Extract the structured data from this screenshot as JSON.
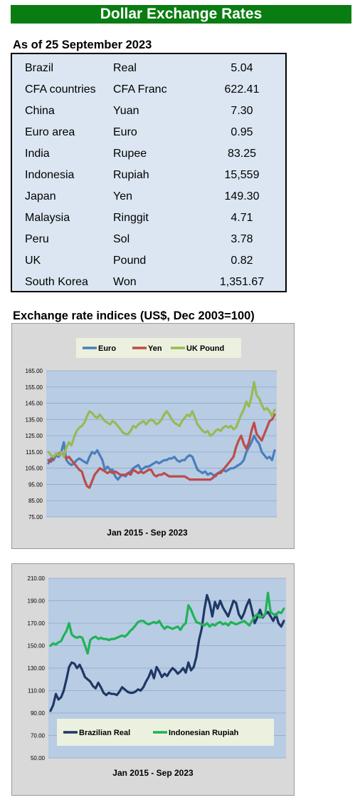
{
  "banner": "Dollar Exchange Rates",
  "rates_heading": "As of 25 September 2023",
  "rates": [
    {
      "country": "Brazil",
      "currency": "Real",
      "value": "5.04"
    },
    {
      "country": "CFA countries",
      "currency": "CFA Franc",
      "value": "622.41"
    },
    {
      "country": "China",
      "currency": "Yuan",
      "value": "7.30"
    },
    {
      "country": "Euro area",
      "currency": "Euro",
      "value": "0.95"
    },
    {
      "country": "India",
      "currency": "Rupee",
      "value": "83.25"
    },
    {
      "country": "Indonesia",
      "currency": "Rupiah",
      "value": "15,559"
    },
    {
      "country": "Japan",
      "currency": "Yen",
      "value": "149.30"
    },
    {
      "country": "Malaysia",
      "currency": "Ringgit",
      "value": "4.71"
    },
    {
      "country": "Peru",
      "currency": "Sol",
      "value": "3.78"
    },
    {
      "country": "UK",
      "currency": "Pound",
      "value": "0.82"
    },
    {
      "country": "South Korea",
      "currency": "Won",
      "value": "1,351.67"
    }
  ],
  "indices_heading": "Exchange rate indices (US$, Dec 2003=100)",
  "colors": {
    "euro": "#4a7ebb",
    "yen": "#be4b48",
    "pound": "#98b954",
    "real": "#1f3864",
    "rupiah": "#1fb356",
    "plot_bg": "#b8cce4",
    "legend_bg": "#ebf1de"
  },
  "chart_data": [
    {
      "type": "line",
      "title": "",
      "xlabel": "Jan 2015 - Sep 2023",
      "ylabel": "",
      "ylim": [
        75,
        165
      ],
      "yticks": [
        "75.00",
        "85.00",
        "95.00",
        "105.00",
        "115.00",
        "125.00",
        "135.00",
        "145.00",
        "155.00",
        "165.00"
      ],
      "grid": true,
      "legend": "top",
      "series": [
        {
          "name": "Euro",
          "color": "#4a7ebb",
          "values": [
            108,
            111,
            110,
            113,
            112,
            115,
            121,
            110,
            108,
            107,
            108,
            110,
            111,
            110,
            109,
            108,
            112,
            115,
            114,
            116,
            113,
            110,
            104,
            106,
            104,
            104,
            100,
            98,
            100,
            101,
            100,
            102,
            103,
            105,
            106,
            107,
            104,
            105,
            106,
            106,
            107,
            108,
            109,
            108,
            109,
            110,
            110,
            111,
            111,
            112,
            110,
            109,
            110,
            110,
            112,
            113,
            112,
            108,
            104,
            103,
            102,
            103,
            101,
            102,
            101,
            100,
            102,
            103,
            104,
            103,
            104,
            105,
            105,
            106,
            107,
            108,
            110,
            115,
            118,
            121,
            125,
            122,
            120,
            115,
            113,
            111,
            112,
            110,
            116
          ]
        },
        {
          "name": "Yen",
          "color": "#be4b48",
          "values": [
            110,
            109,
            112,
            113,
            114,
            115,
            113,
            111,
            112,
            110,
            108,
            106,
            104,
            103,
            98,
            94,
            93,
            97,
            101,
            103,
            105,
            104,
            103,
            102,
            103,
            102,
            103,
            102,
            101,
            101,
            101,
            102,
            101,
            104,
            103,
            102,
            103,
            102,
            103,
            104,
            104,
            101,
            100,
            101,
            101,
            102,
            101,
            100,
            100,
            100,
            100,
            100,
            100,
            100,
            99,
            98,
            98,
            98,
            98,
            98,
            98,
            98,
            98,
            98,
            99,
            101,
            102,
            102,
            104,
            106,
            108,
            110,
            112,
            118,
            122,
            125,
            120,
            117,
            121,
            128,
            133,
            126,
            124,
            122,
            126,
            130,
            134,
            135,
            138
          ]
        },
        {
          "name": "UK Pound",
          "color": "#98b954",
          "values": [
            115,
            113,
            112,
            114,
            113,
            115,
            112,
            118,
            121,
            119,
            124,
            128,
            130,
            131,
            133,
            137,
            140,
            139,
            137,
            136,
            138,
            136,
            134,
            133,
            132,
            134,
            133,
            131,
            129,
            127,
            126,
            126,
            128,
            131,
            130,
            132,
            133,
            134,
            132,
            134,
            135,
            134,
            132,
            133,
            135,
            138,
            140,
            138,
            135,
            133,
            132,
            131,
            134,
            136,
            138,
            137,
            140,
            136,
            132,
            130,
            128,
            127,
            128,
            125,
            126,
            128,
            129,
            128,
            130,
            131,
            130,
            131,
            129,
            130,
            134,
            138,
            141,
            146,
            143,
            149,
            158,
            150,
            148,
            144,
            141,
            142,
            140,
            137,
            141
          ]
        }
      ]
    },
    {
      "type": "line",
      "title": "",
      "xlabel": "Jan 2015 - Sep 2023",
      "ylabel": "",
      "ylim": [
        50,
        210
      ],
      "yticks": [
        "50.00",
        "70.00",
        "90.00",
        "110.00",
        "130.00",
        "150.00",
        "170.00",
        "190.00",
        "210.00"
      ],
      "grid": true,
      "legend": "bottom",
      "series": [
        {
          "name": "Brazilian Real",
          "color": "#1f3864",
          "values": [
            92,
            97,
            107,
            102,
            104,
            110,
            120,
            131,
            135,
            134,
            130,
            133,
            128,
            122,
            120,
            118,
            114,
            112,
            117,
            113,
            108,
            106,
            108,
            107,
            107,
            106,
            109,
            113,
            111,
            109,
            108,
            108,
            109,
            111,
            110,
            113,
            118,
            122,
            128,
            121,
            131,
            127,
            122,
            125,
            123,
            127,
            130,
            128,
            125,
            127,
            130,
            126,
            135,
            128,
            131,
            140,
            155,
            165,
            182,
            195,
            188,
            176,
            189,
            183,
            190,
            184,
            180,
            176,
            183,
            190,
            188,
            178,
            174,
            179,
            186,
            191,
            181,
            170,
            175,
            182,
            175,
            178,
            180,
            176,
            172,
            178,
            170,
            167,
            172
          ]
        },
        {
          "name": "Indonesian Rupiah",
          "color": "#1fb356",
          "values": [
            150,
            152,
            151,
            153,
            154,
            159,
            163,
            170,
            160,
            158,
            157,
            158,
            157,
            150,
            143,
            155,
            157,
            158,
            156,
            157,
            156,
            156,
            155,
            156,
            156,
            157,
            158,
            159,
            158,
            160,
            163,
            165,
            168,
            171,
            172,
            172,
            170,
            169,
            170,
            171,
            170,
            172,
            168,
            165,
            167,
            166,
            165,
            166,
            167,
            164,
            168,
            170,
            186,
            182,
            176,
            171,
            170,
            169,
            168,
            170,
            167,
            169,
            168,
            170,
            171,
            169,
            170,
            168,
            171,
            170,
            169,
            170,
            171,
            172,
            170,
            168,
            172,
            176,
            178,
            175,
            176,
            178,
            197,
            180,
            178,
            177,
            180,
            179,
            183
          ]
        }
      ]
    }
  ]
}
